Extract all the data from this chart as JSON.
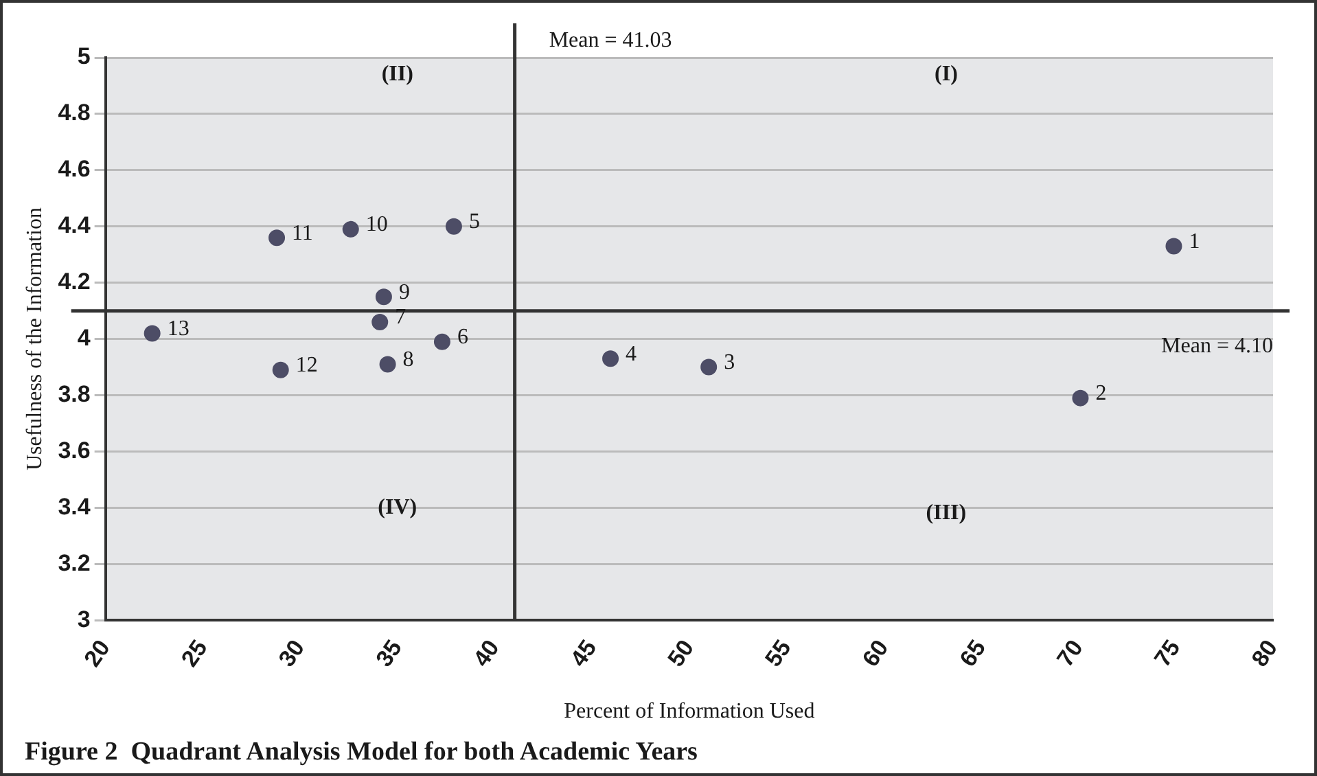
{
  "chart_data": {
    "type": "scatter",
    "title": "Figure 2  Quadrant Analysis Model for both Academic Years",
    "xlabel": "Percent of Information Used",
    "ylabel": "Usefulness of the Information",
    "x": [
      74.9,
      70.1,
      51.0,
      45.95,
      37.9,
      37.3,
      34.1,
      34.5,
      34.3,
      32.6,
      28.8,
      29.0,
      22.4
    ],
    "series": [
      {
        "color": "#4d4d66",
        "values": [
          4.33,
          3.79,
          3.9,
          3.93,
          4.4,
          3.99,
          4.06,
          3.91,
          4.15,
          4.39,
          4.36,
          3.89,
          4.02
        ]
      }
    ],
    "xlim": [
      20,
      80
    ],
    "xticks": [
      20,
      25,
      30,
      35,
      40,
      45,
      50,
      55,
      60,
      65,
      70,
      75,
      80
    ],
    "ylim": [
      3,
      5
    ],
    "yticks": [
      3,
      3.2,
      3.4,
      3.6,
      3.8,
      4,
      4.2,
      4.4,
      4.6,
      4.8,
      5
    ],
    "grid": "y",
    "legend": false,
    "marker": "circle",
    "ref_lines": [
      {
        "axis": "x",
        "value": 41.03,
        "label": "Mean = 41.03",
        "color": "#333333"
      },
      {
        "axis": "y",
        "value": 4.1,
        "label": "Mean = 4.10",
        "color": "#333333"
      }
    ],
    "annotations": [
      "(II)",
      "(I)",
      "(IV)",
      "(III)",
      {
        "text": "1",
        "x": 74.9,
        "y": 4.33
      },
      {
        "text": "2",
        "x": 70.1,
        "y": 3.79
      },
      {
        "text": "3",
        "x": 51.0,
        "y": 3.9
      },
      {
        "text": "4",
        "x": 45.95,
        "y": 3.93
      },
      {
        "text": "5",
        "x": 37.9,
        "y": 4.4
      },
      {
        "text": "6",
        "x": 37.3,
        "y": 3.99
      },
      {
        "text": "7",
        "x": 34.1,
        "y": 4.06
      },
      {
        "text": "8",
        "x": 34.5,
        "y": 3.91
      },
      {
        "text": "9",
        "x": 34.3,
        "y": 4.15
      },
      {
        "text": "10",
        "x": 32.6,
        "y": 4.39
      },
      {
        "text": "11",
        "x": 28.8,
        "y": 4.36
      },
      {
        "text": "12",
        "x": 29.0,
        "y": 3.89
      },
      {
        "text": "13",
        "x": 22.4,
        "y": 4.02
      }
    ]
  }
}
